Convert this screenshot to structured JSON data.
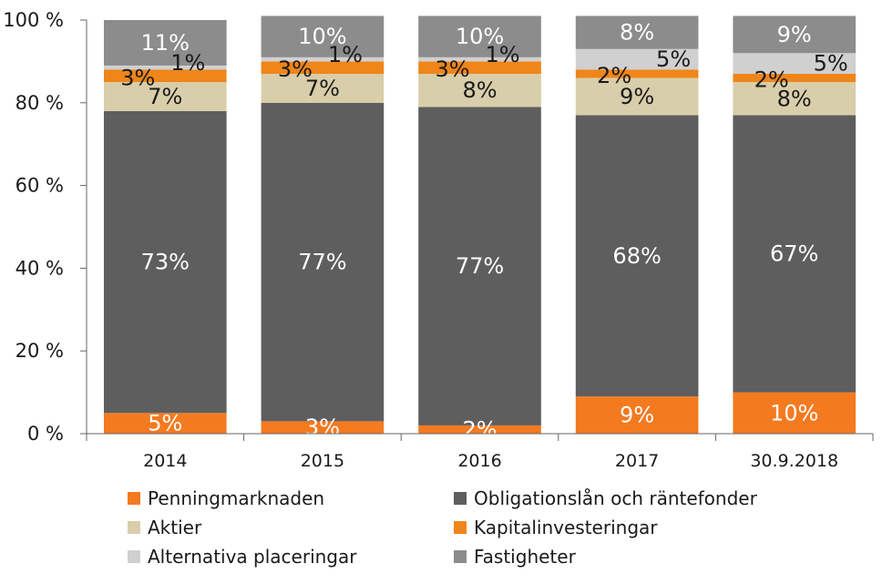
{
  "chart_data": {
    "type": "bar",
    "stacked": true,
    "categories": [
      "2014",
      "2015",
      "2016",
      "2017",
      "30.9.2018"
    ],
    "ylim": [
      0,
      100
    ],
    "yticks": [
      "0 %",
      "20 %",
      "40 %",
      "60 %",
      "80 %",
      "100 %"
    ],
    "grid": false,
    "legend_position": "bottom",
    "series": [
      {
        "name": "Penningmarknaden",
        "color": "#f47a20",
        "values": [
          5,
          3,
          2,
          9,
          10
        ],
        "labels": [
          "5%",
          "3%",
          "2%",
          "9%",
          "10%"
        ],
        "label_color": "#ffffff"
      },
      {
        "name": "Obligationslån och räntefonder",
        "color": "#5e5e5e",
        "values": [
          73,
          77,
          77,
          68,
          67
        ],
        "labels": [
          "73%",
          "77%",
          "77%",
          "68%",
          "67%"
        ],
        "label_color": "#ffffff"
      },
      {
        "name": "Aktier",
        "color": "#d9ceaa",
        "values": [
          7,
          7,
          8,
          9,
          8
        ],
        "labels": [
          "7%",
          "7%",
          "8%",
          "9%",
          "8%"
        ],
        "label_color": "#1a1a1a"
      },
      {
        "name": "Kapitalinvesteringar",
        "color": "#f08519",
        "values": [
          3,
          3,
          3,
          2,
          2
        ],
        "labels": [
          "3%",
          "3%",
          "3%",
          "2%",
          "2%"
        ],
        "label_color": "#1a1a1a"
      },
      {
        "name": "Alternativa placeringar",
        "color": "#d0d0d0",
        "values": [
          1,
          1,
          1,
          5,
          5
        ],
        "labels": [
          "1%",
          "1%",
          "1%",
          "5%",
          "5%"
        ],
        "label_color": "#1a1a1a"
      },
      {
        "name": "Fastigheter",
        "color": "#8c8c8c",
        "values": [
          11,
          10,
          10,
          8,
          9
        ],
        "labels": [
          "11%",
          "10%",
          "10%",
          "8%",
          "9%"
        ],
        "label_color": "#ffffff"
      }
    ]
  }
}
